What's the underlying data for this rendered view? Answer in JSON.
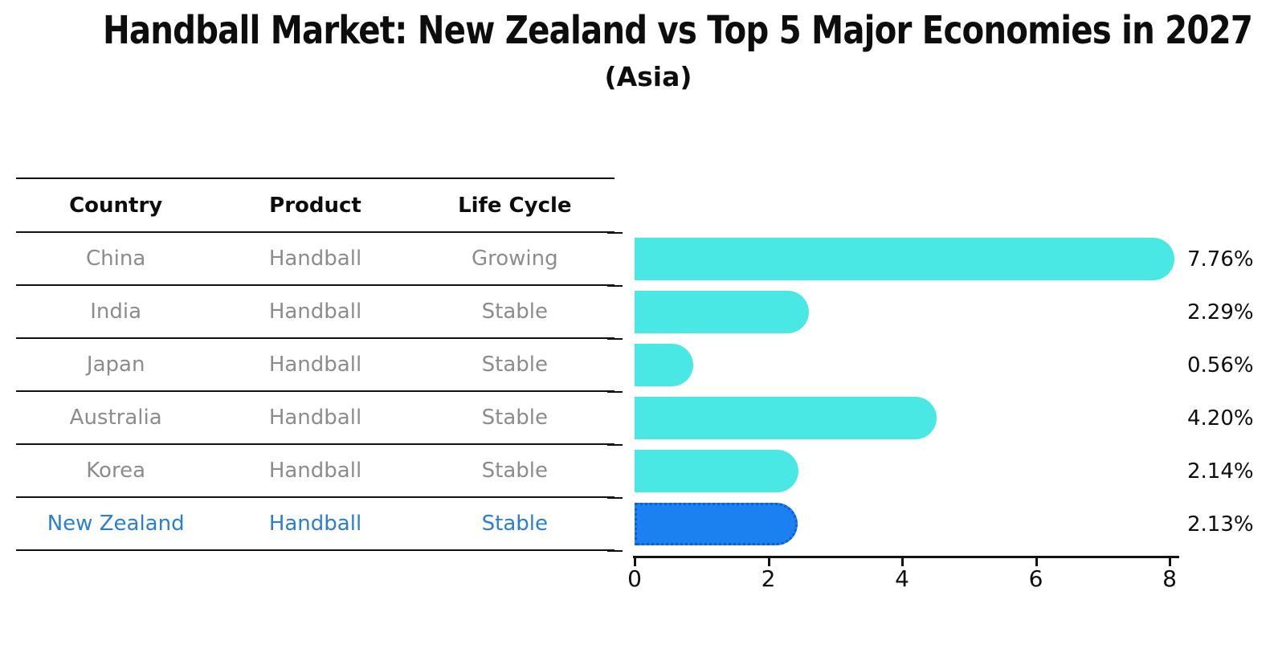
{
  "title": "Handball Market: New Zealand vs Top 5 Major Economies in 2027",
  "subtitle": "(Asia)",
  "table": {
    "headers": [
      "Country",
      "Product",
      "Life Cycle"
    ],
    "rows": [
      {
        "country": "China",
        "product": "Handball",
        "life_cycle": "Growing",
        "highlight": false
      },
      {
        "country": "India",
        "product": "Handball",
        "life_cycle": "Stable",
        "highlight": false
      },
      {
        "country": "Japan",
        "product": "Handball",
        "life_cycle": "Stable",
        "highlight": false
      },
      {
        "country": "Australia",
        "product": "Handball",
        "life_cycle": "Stable",
        "highlight": false
      },
      {
        "country": "Korea",
        "product": "Handball",
        "life_cycle": "Stable",
        "highlight": false
      },
      {
        "country": "New Zealand",
        "product": "Handball",
        "life_cycle": "Stable",
        "highlight": true
      }
    ]
  },
  "chart_data": {
    "type": "bar",
    "orientation": "horizontal",
    "title": "Handball Market: New Zealand vs Top 5 Major Economies in 2027",
    "subtitle": "(Asia)",
    "categories": [
      "China",
      "India",
      "Japan",
      "Australia",
      "Korea",
      "New Zealand"
    ],
    "values": [
      7.76,
      2.29,
      0.56,
      4.2,
      2.14,
      2.13
    ],
    "value_labels": [
      "7.76%",
      "2.29%",
      "0.56%",
      "4.20%",
      "2.14%",
      "2.13%"
    ],
    "highlight_category": "New Zealand",
    "xlim": [
      0,
      8.15
    ],
    "xticks": [
      0,
      2,
      4,
      6,
      8
    ],
    "grid": false,
    "legend": "none",
    "bar_color": "#4ae8e4",
    "highlight_bar_color": "#1b80f0",
    "highlight_text_color": "#2b7fd0"
  }
}
